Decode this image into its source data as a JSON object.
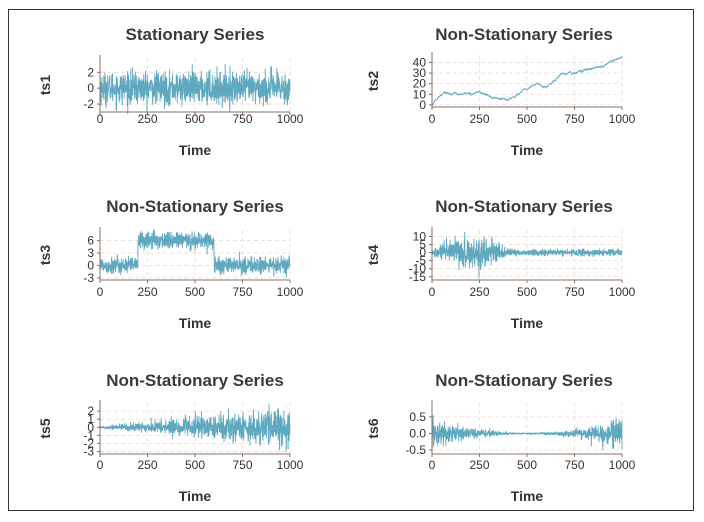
{
  "chart_data": [
    {
      "type": "line",
      "title": "Stationary Series",
      "xlabel": "Time",
      "ylabel": "ts1",
      "xlim": [
        0,
        1000
      ],
      "ylim": [
        -3,
        3.8
      ],
      "xticks": [
        0,
        250,
        500,
        750,
        1000
      ],
      "yticks": [
        -2,
        0,
        2
      ],
      "grid": true,
      "series": [
        {
          "values_model": {
            "kind": "white_noise",
            "n": 1000,
            "sd": 1
          }
        }
      ]
    },
    {
      "type": "line",
      "title": "Non-Stationary Series",
      "xlabel": "Time",
      "ylabel": "ts2",
      "xlim": [
        0,
        1000
      ],
      "ylim": [
        -2,
        47
      ],
      "xticks": [
        0,
        250,
        500,
        750,
        1000
      ],
      "yticks": [
        0,
        10,
        20,
        30,
        40
      ],
      "grid": true,
      "series": [
        {
          "values_model": {
            "kind": "random_walk",
            "n": 1000,
            "points": [
              [
                0,
                0
              ],
              [
                60,
                12
              ],
              [
                150,
                10
              ],
              [
                250,
                12
              ],
              [
                330,
                6
              ],
              [
                400,
                5
              ],
              [
                450,
                10
              ],
              [
                550,
                20
              ],
              [
                600,
                16
              ],
              [
                650,
                25
              ],
              [
                700,
                30
              ],
              [
                750,
                30
              ],
              [
                800,
                33
              ],
              [
                900,
                37
              ],
              [
                950,
                40
              ],
              [
                1000,
                45
              ]
            ]
          }
        }
      ]
    },
    {
      "type": "line",
      "title": "Non-Stationary Series",
      "xlabel": "Time",
      "ylabel": "ts3",
      "xlim": [
        0,
        1000
      ],
      "ylim": [
        -3.5,
        8.5
      ],
      "xticks": [
        0,
        250,
        500,
        750,
        1000
      ],
      "yticks": [
        -3,
        0,
        3,
        6
      ],
      "grid": true,
      "series": [
        {
          "values_model": {
            "kind": "level_shift",
            "n": 1000,
            "sd": 1,
            "segments": [
              [
                0,
                200,
                0
              ],
              [
                200,
                600,
                6
              ],
              [
                600,
                1000,
                0
              ]
            ]
          }
        }
      ]
    },
    {
      "type": "line",
      "title": "Non-Stationary Series",
      "xlabel": "Time",
      "ylabel": "ts4",
      "xlim": [
        0,
        1000
      ],
      "ylim": [
        -17,
        14
      ],
      "xticks": [
        0,
        250,
        500,
        750,
        1000
      ],
      "yticks": [
        -15,
        -10,
        -5,
        0,
        5,
        10
      ],
      "grid": true,
      "series": [
        {
          "values_model": {
            "kind": "variance_burst",
            "n": 1000,
            "sd_low": 1,
            "sd_high": 5,
            "burst": [
              0,
              400
            ]
          }
        }
      ]
    },
    {
      "type": "line",
      "title": "Non-Stationary Series",
      "xlabel": "Time",
      "ylabel": "ts5",
      "xlim": [
        0,
        1000
      ],
      "ylim": [
        -3.3,
        3
      ],
      "xticks": [
        0,
        250,
        500,
        750,
        1000
      ],
      "yticks": [
        -3,
        -2,
        -1,
        0,
        1,
        2
      ],
      "grid": true,
      "series": [
        {
          "values_model": {
            "kind": "growing_variance",
            "n": 1000,
            "sd_start": 0.05,
            "sd_end": 1.2
          }
        }
      ]
    },
    {
      "type": "line",
      "title": "Non-Stationary Series",
      "xlabel": "Time",
      "ylabel": "ts6",
      "xlim": [
        0,
        1000
      ],
      "ylim": [
        -0.62,
        0.92
      ],
      "xticks": [
        0,
        250,
        500,
        750,
        1000
      ],
      "yticks": [
        -0.5,
        0.0,
        0.5
      ],
      "ytick_labels": [
        "-0.5",
        "0.0",
        "0.5"
      ],
      "grid": true,
      "series": [
        {
          "values_model": {
            "kind": "u_shaped_variance",
            "n": 1000,
            "sd_edge": 0.22,
            "sd_mid": 0.01
          }
        }
      ]
    }
  ],
  "colors": {
    "line": "#5ea8c0",
    "grid": "#e7dcd4",
    "axis": "#8a7060",
    "title": "#3a3a3a",
    "text": "#333333"
  }
}
